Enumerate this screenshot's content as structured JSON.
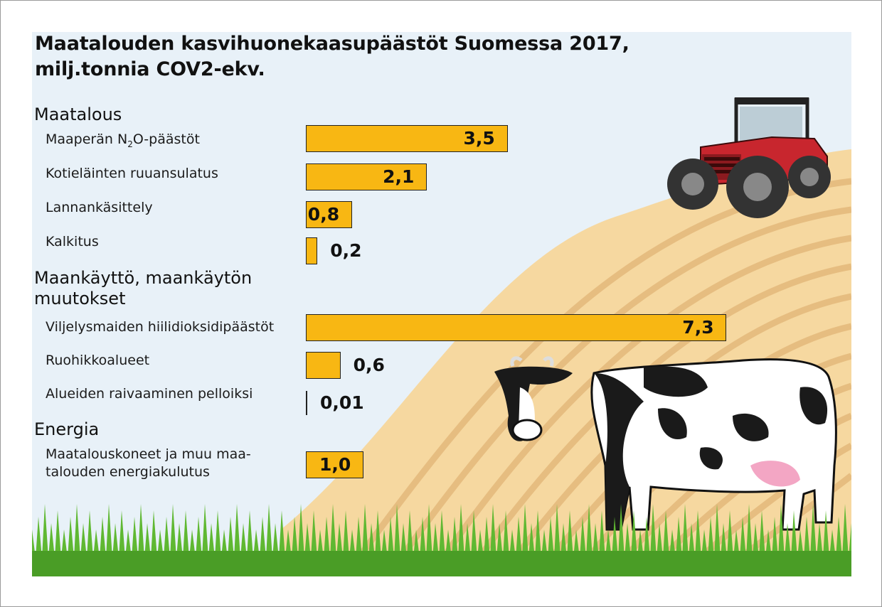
{
  "chart_data": {
    "type": "bar",
    "orientation": "horizontal",
    "title": "Maatalouden kasvihuonekaasupäästöt Suomessa 2017,",
    "subtitle": "milj.tonnia COV2-ekv.",
    "groups": [
      {
        "name": "Maatalous",
        "items": [
          {
            "label_before": "Maaperän N",
            "label_sub": "2",
            "label_after": "O-päästöt",
            "value": 3.5,
            "value_label": "3,5"
          },
          {
            "label": "Kotieläinten ruuansulatus",
            "value": 2.1,
            "value_label": "2,1"
          },
          {
            "label": "Lannankäsittely",
            "value": 0.8,
            "value_label": "0,8"
          },
          {
            "label": "Kalkitus",
            "value": 0.2,
            "value_label": "0,2"
          }
        ]
      },
      {
        "name_lines": [
          "Maankäyttö, maankäytön",
          "muutokset"
        ],
        "items": [
          {
            "label": "Viljelysmaiden hiilidioksidipäästöt",
            "value": 7.3,
            "value_label": "7,3"
          },
          {
            "label": "Ruohikkoalueet",
            "value": 0.6,
            "value_label": "0,6"
          },
          {
            "label": "Alueiden raivaaminen pelloiksi",
            "value": 0.01,
            "value_label": "0,01"
          }
        ]
      },
      {
        "name": "Energia",
        "items": [
          {
            "label_lines": [
              "Maatalouskoneet ja muu maa-",
              "talouden energiakulutus"
            ],
            "value": 1.0,
            "value_label": "1,0"
          }
        ]
      }
    ],
    "bar_color": "#f8b713",
    "grid": false,
    "legend": "none"
  },
  "colors": {
    "background": "#e8f1f8",
    "bar": "#f8b713",
    "field": "#f6d8a0",
    "grass": "#5fb832",
    "tractor": "#c8262e"
  },
  "illustrations": [
    "tractor-illustration",
    "cow-illustration",
    "field-illustration",
    "grass-illustration"
  ]
}
